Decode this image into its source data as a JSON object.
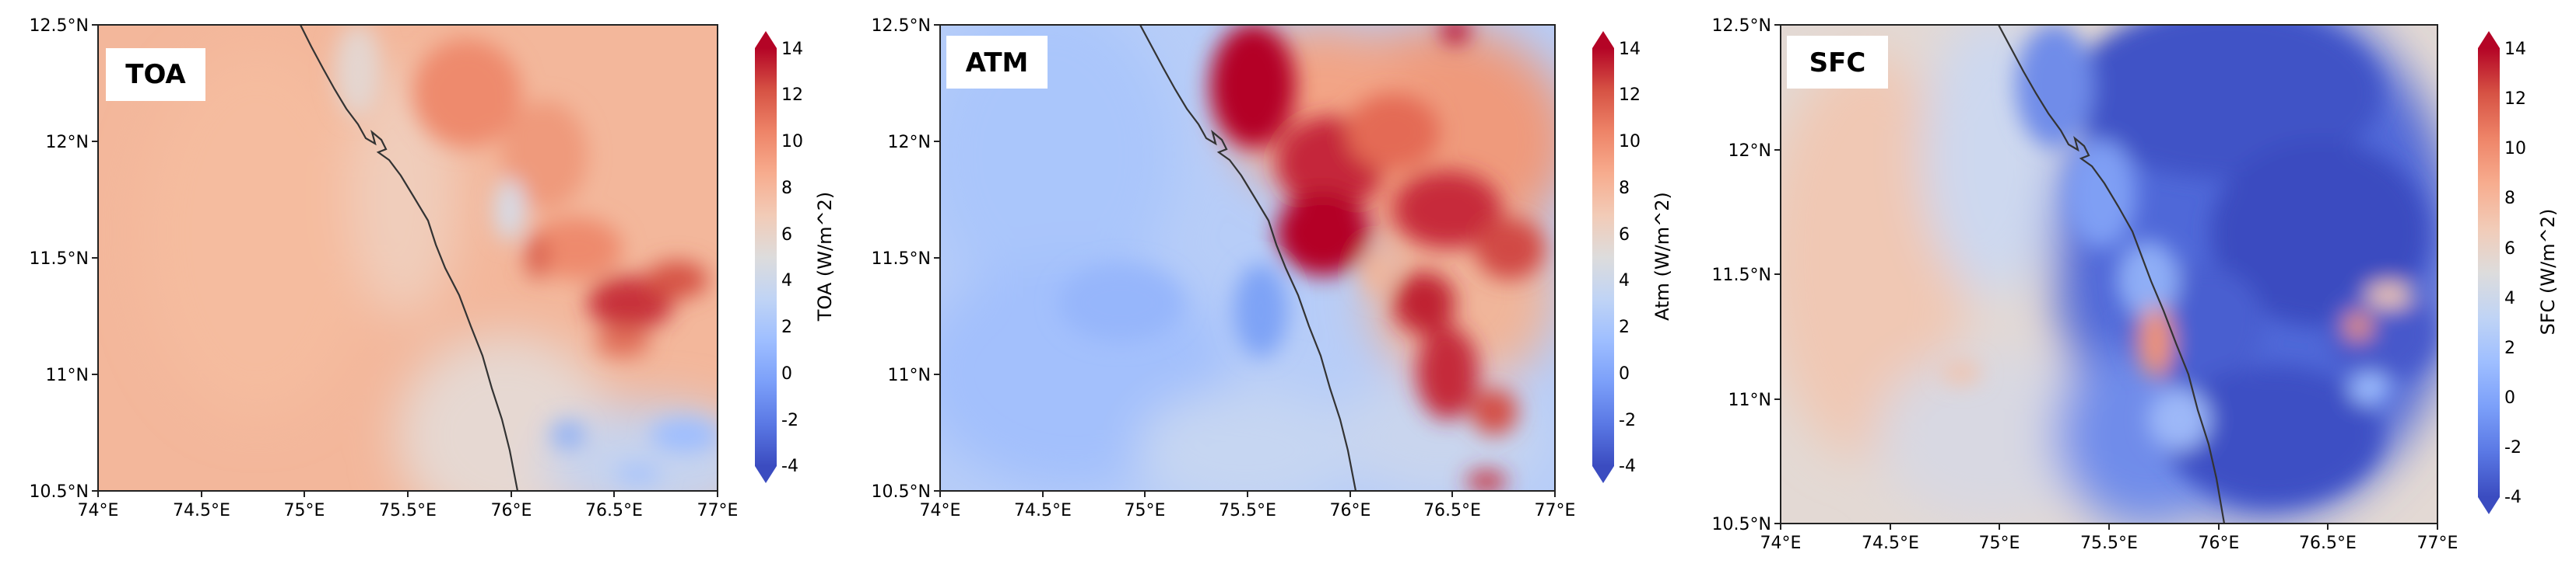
{
  "colorbar_ticks": [
    "-4",
    "-2",
    "0",
    "2",
    "4",
    "6",
    "8",
    "10",
    "12",
    "14"
  ],
  "x_ticks": [
    "74°E",
    "74.5°E",
    "75°E",
    "75.5°E",
    "76°E",
    "76.5°E",
    "77°E"
  ],
  "y_ticks": [
    "10.5°N",
    "11°N",
    "11.5°N",
    "12°N",
    "12.5°N"
  ],
  "colors": {
    "cmap": [
      "#3b4cc0",
      "#5a78e4",
      "#7b9ff9",
      "#9ebeff",
      "#c0d4f5",
      "#dddcdc",
      "#f2cbb7",
      "#f7ac8e",
      "#ee8468",
      "#d65244",
      "#b40426"
    ],
    "coastline": "#333333"
  },
  "panels": [
    {
      "badge": "TOA",
      "cbar_label": "TOA (W/m^2)"
    },
    {
      "badge": "ATM",
      "cbar_label": "Atm (W/m^2)"
    },
    {
      "badge": "SFC",
      "cbar_label": "SFC (W/m^2)"
    }
  ]
}
